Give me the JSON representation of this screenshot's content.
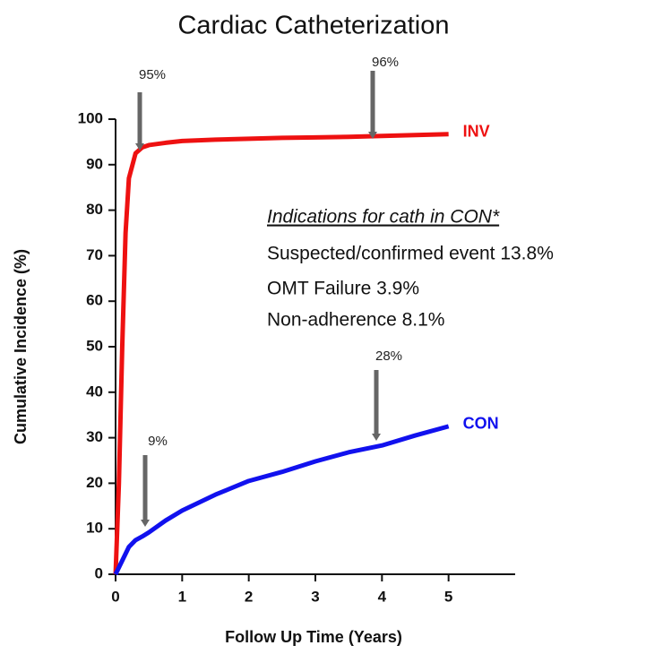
{
  "chart_data": {
    "type": "line",
    "title": "Cardiac Catheterization",
    "x_label": "Follow Up Time (Years)",
    "y_label": "Cumulative Incidence (%)",
    "x": [
      0,
      0.05,
      0.1,
      0.15,
      0.2,
      0.3,
      0.4,
      0.5,
      0.75,
      1,
      1.5,
      2,
      2.5,
      3,
      3.5,
      4,
      4.5,
      5
    ],
    "series": [
      {
        "name": "INV",
        "color": "#ee1111",
        "values": [
          0,
          20,
          50,
          75,
          87,
          92.5,
          93.8,
          94.3,
          94.8,
          95.2,
          95.5,
          95.7,
          95.9,
          96,
          96.1,
          96.3,
          96.5,
          96.7
        ]
      },
      {
        "name": "CON",
        "color": "#1111ee",
        "values": [
          0,
          1.5,
          3,
          4.5,
          6,
          7.5,
          8.3,
          9.2,
          11.8,
          14,
          17.5,
          20.5,
          22.5,
          24.8,
          26.8,
          28.3,
          30.5,
          32.5
        ]
      }
    ],
    "xlim": [
      0,
      6
    ],
    "ylim": [
      0,
      100
    ],
    "xticks": [
      0,
      1,
      2,
      3,
      4,
      5
    ],
    "yticks": [
      0,
      10,
      20,
      30,
      40,
      50,
      60,
      70,
      80,
      90,
      100
    ],
    "annotations": [
      "95%",
      "96%",
      "9%",
      "28%"
    ],
    "notes": {
      "heading": "Indications for cath in CON*",
      "lines": [
        "Suspected/confirmed event 13.8%",
        "OMT Failure 3.9%",
        "Non-adherence 8.1%"
      ]
    }
  }
}
